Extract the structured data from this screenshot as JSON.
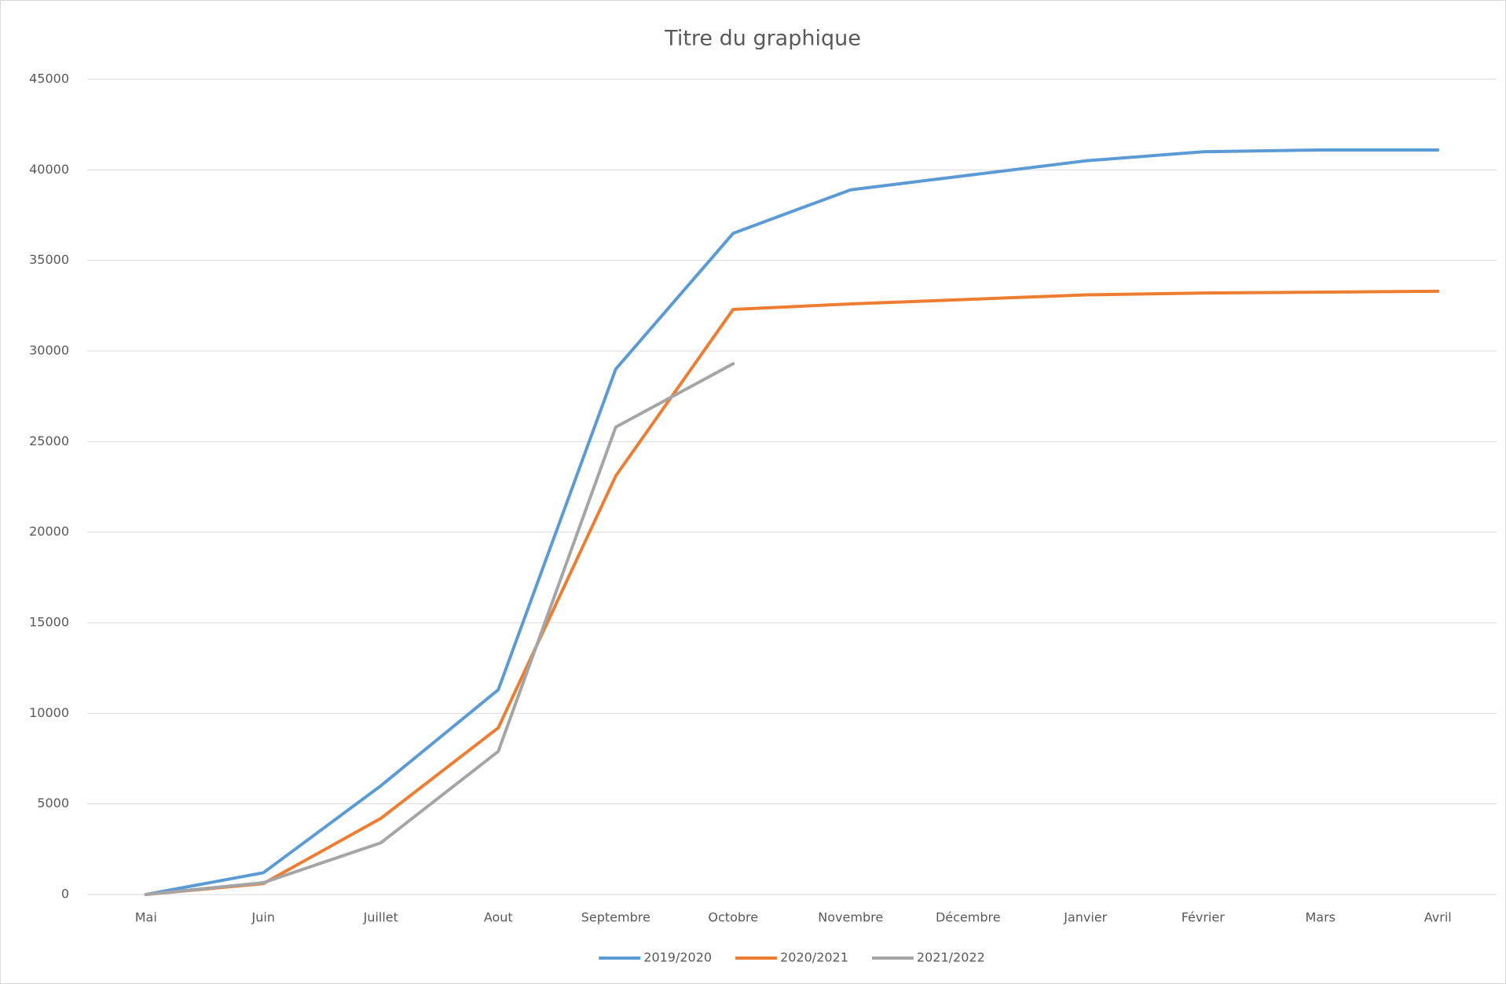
{
  "chart_data": {
    "type": "line",
    "title": "Titre du graphique",
    "categories": [
      "Mai",
      "Juin",
      "Juillet",
      "Aout",
      "Septembre",
      "Octobre",
      "Novembre",
      "Décembre",
      "Janvier",
      "Février",
      "Mars",
      "Avril"
    ],
    "series": [
      {
        "name": "2019/2020",
        "color": "#5b9bd5",
        "values": [
          0,
          1200,
          6000,
          11300,
          29000,
          36500,
          38900,
          39700,
          40500,
          41000,
          41100,
          41100
        ]
      },
      {
        "name": "2020/2021",
        "color": "#ed7d31",
        "values": [
          0,
          600,
          4200,
          9200,
          23100,
          32300,
          32600,
          32850,
          33100,
          33200,
          33250,
          33300
        ]
      },
      {
        "name": "2021/2022",
        "color": "#a5a5a5",
        "values": [
          0,
          650,
          2850,
          7900,
          25800,
          29300,
          null,
          null,
          null,
          null,
          null,
          null
        ]
      }
    ],
    "ylim": [
      0,
      45000
    ],
    "yticks": [
      0,
      5000,
      10000,
      15000,
      20000,
      25000,
      30000,
      35000,
      40000,
      45000
    ],
    "grid": true,
    "legend": "bottom"
  }
}
